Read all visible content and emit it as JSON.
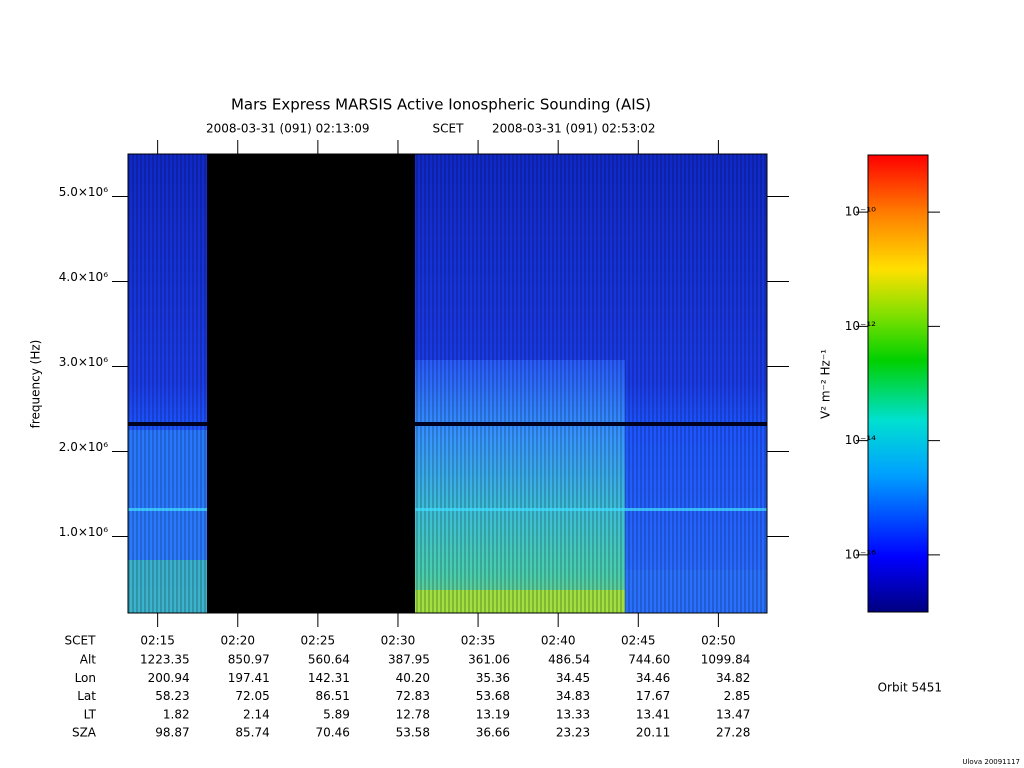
{
  "chart_data": {
    "type": "spectrogram",
    "title": "Mars Express MARSIS Active Ionospheric Sounding (AIS)",
    "time_system": "SCET",
    "xlim": [
      "2008-03-31 (091) 02:13:09",
      "2008-03-31 (091) 02:53:02"
    ],
    "xticks": [
      "02:15",
      "02:20",
      "02:25",
      "02:30",
      "02:35",
      "02:40",
      "02:45",
      "02:50"
    ],
    "ylabel": "frequency (Hz)",
    "ylim": [
      100000,
      5500000
    ],
    "yticks": [
      {
        "value": 1000000,
        "label": "1.0×10⁶"
      },
      {
        "value": 2000000,
        "label": "2.0×10⁶"
      },
      {
        "value": 3000000,
        "label": "3.0×10⁶"
      },
      {
        "value": 4000000,
        "label": "4.0×10⁶"
      },
      {
        "value": 5000000,
        "label": "5.0×10⁶"
      }
    ],
    "colorbar": {
      "label": "V² m⁻² Hz⁻¹",
      "log": true,
      "clim": [
        1e-17,
        1e-09
      ],
      "ticks": [
        {
          "value": 1e-16,
          "label": "10⁻¹⁶"
        },
        {
          "value": 1e-14,
          "label": "10⁻¹⁴"
        },
        {
          "value": 1e-12,
          "label": "10⁻¹²"
        },
        {
          "value": 1e-10,
          "label": "10⁻¹⁰"
        }
      ]
    },
    "ephemeris": {
      "time_label": "SCET",
      "rows": [
        {
          "name": "Alt",
          "values": [
            "1223.35",
            "850.97",
            "560.64",
            "387.95",
            "361.06",
            "486.54",
            "744.60",
            "1099.84"
          ]
        },
        {
          "name": "Lon",
          "values": [
            "200.94",
            "197.41",
            "142.31",
            "40.20",
            "35.36",
            "34.45",
            "34.46",
            "34.82"
          ]
        },
        {
          "name": "Lat",
          "values": [
            "58.23",
            "72.05",
            "86.51",
            "72.83",
            "53.68",
            "34.83",
            "17.67",
            "2.85"
          ]
        },
        {
          "name": "LT",
          "values": [
            "1.82",
            "2.14",
            "5.89",
            "12.78",
            "13.19",
            "13.33",
            "13.41",
            "13.47"
          ]
        },
        {
          "name": "SZA",
          "values": [
            "98.87",
            "85.74",
            "70.46",
            "53.58",
            "36.66",
            "23.23",
            "20.11",
            "27.28"
          ]
        }
      ]
    },
    "orbit": "Orbit 5451",
    "footer": "Ulova 20091117"
  }
}
